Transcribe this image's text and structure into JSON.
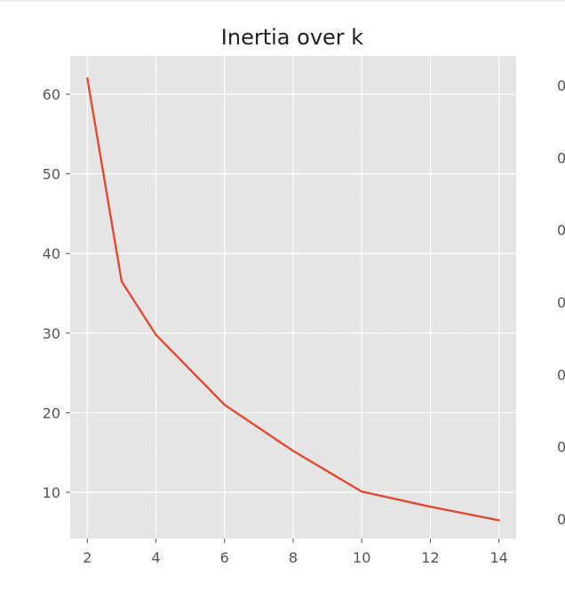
{
  "chart_data": {
    "type": "line",
    "title": "Inertia over k",
    "xlabel": "",
    "ylabel": "",
    "x": [
      2,
      3,
      4,
      6,
      8,
      10,
      12,
      14
    ],
    "series": [
      {
        "values": [
          62,
          36.5,
          29.8,
          21,
          15.2,
          10.1,
          8.2,
          6.5
        ]
      }
    ],
    "xlim": [
      1.5,
      14.5
    ],
    "ylim": [
      4.2,
      64.8
    ],
    "xticks": [
      2,
      4,
      6,
      8,
      10,
      12,
      14
    ],
    "yticks": [
      10,
      20,
      30,
      40,
      50,
      60
    ],
    "xtick_labels": [
      "2",
      "4",
      "6",
      "8",
      "10",
      "12",
      "14"
    ],
    "ytick_labels": [
      "10",
      "20",
      "30",
      "40",
      "50",
      "60"
    ],
    "grid": true,
    "style": "ggplot",
    "colors": {
      "line": "#E24A33",
      "plot_bg": "#E5E5E5",
      "grid": "#FFFFFF",
      "tick_text": "#555555",
      "title_text": "#222222"
    }
  },
  "neighbor_panel": {
    "clipped_tick_labels": [
      "0",
      "0",
      "0",
      "0",
      "0",
      "0",
      "0"
    ]
  }
}
